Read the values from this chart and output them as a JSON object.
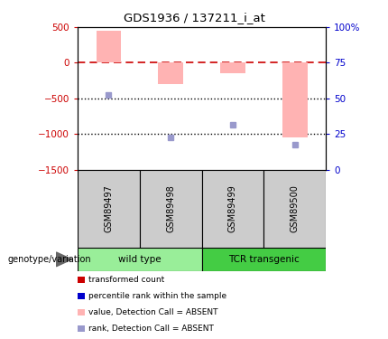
{
  "title": "GDS1936 / 137211_i_at",
  "samples": [
    "GSM89497",
    "GSM89498",
    "GSM89499",
    "GSM89500"
  ],
  "bar_values": [
    450,
    -300,
    -150,
    -1050
  ],
  "bar_color": "#ffb3b3",
  "dot_values": [
    -450,
    -1050,
    -870,
    -1150
  ],
  "dot_color": "#9999cc",
  "ylim_left": [
    -1500,
    500
  ],
  "ylim_right": [
    0,
    100
  ],
  "hline_y": 0,
  "hline_color": "#cc0000",
  "dotted_lines": [
    -500,
    -1000
  ],
  "dotted_color": "#000000",
  "left_tick_vals": [
    500,
    0,
    -500,
    -1000,
    -1500
  ],
  "right_tick_vals": [
    100,
    75,
    50,
    25,
    0
  ],
  "right_tick_labels": [
    "100%",
    "75",
    "50",
    "25",
    "0"
  ],
  "left_tick_color": "#cc0000",
  "right_tick_color": "#0000cc",
  "group_wild_color": "#99ee99",
  "group_tcr_color": "#44cc44",
  "sample_box_color": "#cccccc",
  "genotype_label": "genotype/variation",
  "legend_items": [
    {
      "label": "transformed count",
      "color": "#cc0000"
    },
    {
      "label": "percentile rank within the sample",
      "color": "#0000cc"
    },
    {
      "label": "value, Detection Call = ABSENT",
      "color": "#ffb3b3"
    },
    {
      "label": "rank, Detection Call = ABSENT",
      "color": "#9999cc"
    }
  ]
}
